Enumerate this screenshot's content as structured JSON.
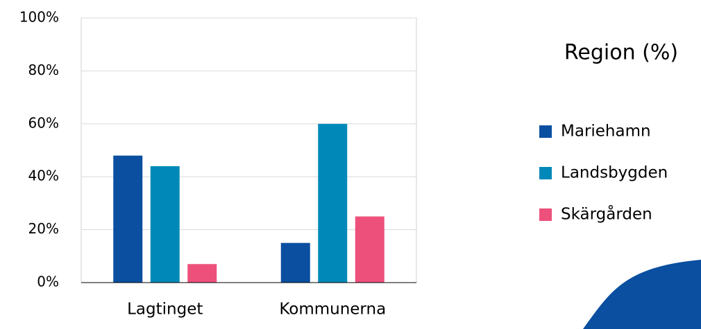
{
  "chart_data": {
    "type": "bar",
    "legend_title": "Region (%)",
    "categories": [
      "Lagtinget",
      "Kommunerna"
    ],
    "series": [
      {
        "name": "Mariehamn",
        "color": "#0a4fa0",
        "values": [
          48,
          15
        ]
      },
      {
        "name": "Landsbygden",
        "color": "#0089b8",
        "values": [
          44,
          60
        ]
      },
      {
        "name": "Skärgården",
        "color": "#ee507c",
        "values": [
          7,
          25
        ]
      }
    ],
    "ylim": [
      0,
      100
    ],
    "yticks": [
      {
        "value": 0,
        "label": "0%"
      },
      {
        "value": 20,
        "label": "20%"
      },
      {
        "value": 40,
        "label": "40%"
      },
      {
        "value": 60,
        "label": "60%"
      },
      {
        "value": 80,
        "label": "80%"
      },
      {
        "value": 100,
        "label": "100%"
      }
    ],
    "grid": true,
    "legend": "right"
  }
}
